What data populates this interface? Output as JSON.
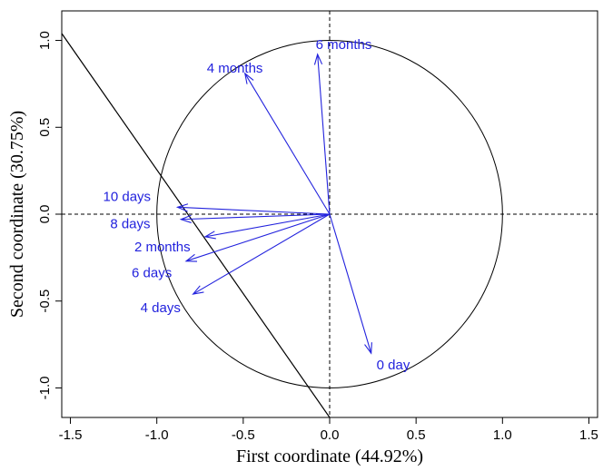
{
  "chart_data": {
    "type": "scatter",
    "xlabel": "First coordinate (44.92%)",
    "ylabel": "Second coordinate (30.75%)",
    "xlim": [
      -1.55,
      1.55
    ],
    "ylim": [
      -1.17,
      1.17
    ],
    "x_ticks": [
      -1.5,
      -1.0,
      -0.5,
      0.0,
      0.5,
      1.0,
      1.5
    ],
    "y_ticks": [
      -1.0,
      -0.5,
      0.0,
      0.5,
      1.0
    ],
    "x_tick_labels": [
      "-1.5",
      "-1.0",
      "-0.5",
      "0.0",
      "0.5",
      "1.0",
      "1.5"
    ],
    "y_tick_labels": [
      "-1.0",
      "-0.5",
      "0.0",
      "0.5",
      "1.0"
    ],
    "unit_circle": true,
    "reference_lines": [
      "x = 0 (dashed)",
      "y = 0 (dashed)"
    ],
    "series": [
      {
        "vectors": [
          {
            "label": "0 day",
            "x": 0.24,
            "y": -0.8
          },
          {
            "label": "4 days",
            "x": -0.79,
            "y": -0.46
          },
          {
            "label": "6 days",
            "x": -0.83,
            "y": -0.27
          },
          {
            "label": "2 months",
            "x": -0.72,
            "y": -0.13
          },
          {
            "label": "8 days",
            "x": -0.86,
            "y": -0.03
          },
          {
            "label": "10 days",
            "x": -0.88,
            "y": 0.04
          },
          {
            "label": "4 months",
            "x": -0.49,
            "y": 0.81
          },
          {
            "label": "6 months",
            "x": -0.07,
            "y": 0.92
          }
        ]
      }
    ],
    "line": {
      "x1": -1.55,
      "y1": 1.04,
      "x2": 0.0,
      "y2": -1.17
    },
    "colors": {
      "vectors": "#2222dd",
      "axes": "#000000"
    }
  }
}
